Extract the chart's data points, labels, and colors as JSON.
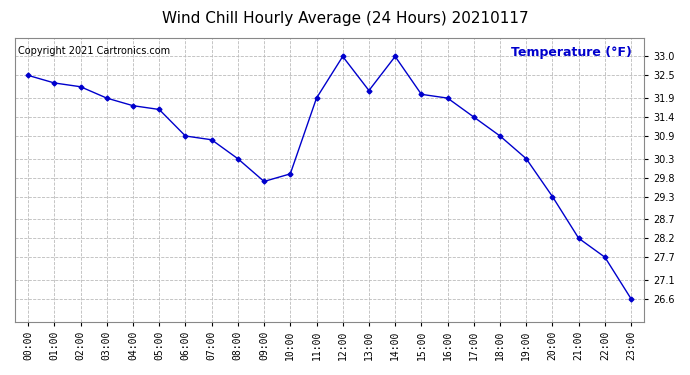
{
  "title": "Wind Chill Hourly Average (24 Hours) 20210117",
  "copyright_text": "Copyright 2021 Cartronics.com",
  "ylabel_text": "Temperature (°F)",
  "hours": [
    "00:00",
    "01:00",
    "02:00",
    "03:00",
    "04:00",
    "05:00",
    "06:00",
    "07:00",
    "08:00",
    "09:00",
    "10:00",
    "11:00",
    "12:00",
    "13:00",
    "14:00",
    "15:00",
    "16:00",
    "17:00",
    "18:00",
    "19:00",
    "20:00",
    "21:00",
    "22:00",
    "23:00"
  ],
  "values": [
    32.5,
    32.3,
    32.2,
    31.9,
    31.7,
    31.6,
    30.9,
    30.8,
    30.3,
    29.7,
    29.9,
    31.9,
    33.0,
    32.1,
    33.0,
    32.0,
    31.9,
    31.4,
    30.9,
    30.3,
    29.3,
    28.2,
    27.7,
    26.6
  ],
  "line_color": "#0000cc",
  "marker": "D",
  "marker_size": 2.5,
  "grid_color": "#bbbbbb",
  "background_color": "#ffffff",
  "plot_bg_color": "#ffffff",
  "ylim_min": 26.0,
  "ylim_max": 33.5,
  "yticks": [
    33.0,
    32.5,
    31.9,
    31.4,
    30.9,
    30.3,
    29.8,
    29.3,
    28.7,
    28.2,
    27.7,
    27.1,
    26.6
  ],
  "title_fontsize": 11,
  "ylabel_fontsize": 9,
  "copyright_fontsize": 7,
  "tick_fontsize": 7
}
